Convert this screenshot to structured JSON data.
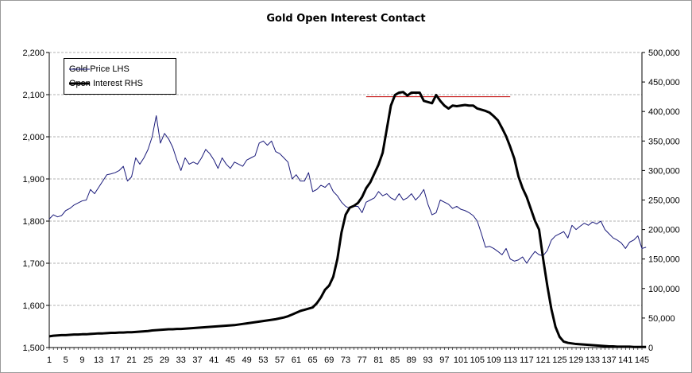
{
  "chart_data": {
    "type": "line",
    "title": "Gold Open Interest Contact",
    "x": {
      "start": 1,
      "end": 145,
      "tick_step": 4,
      "tick_labels": [
        "1",
        "5",
        "9",
        "13",
        "17",
        "21",
        "25",
        "29",
        "33",
        "37",
        "41",
        "45",
        "49",
        "53",
        "57",
        "61",
        "65",
        "69",
        "73",
        "77",
        "81",
        "85",
        "89",
        "93",
        "97",
        "101",
        "105",
        "109",
        "113",
        "117",
        "121",
        "125",
        "129",
        "133",
        "137",
        "141",
        "145"
      ]
    },
    "y_left": {
      "min": 1500,
      "max": 2200,
      "step": 100,
      "tick_labels": [
        "1,500",
        "1,600",
        "1,700",
        "1,800",
        "1,900",
        "2,000",
        "2,100",
        "2,200"
      ]
    },
    "y_right": {
      "min": 0,
      "max": 500000,
      "step": 50000,
      "tick_labels": [
        "0",
        "50,000",
        "100,000",
        "150,000",
        "200,000",
        "250,000",
        "300,000",
        "350,000",
        "400,000",
        "450,000",
        "500,000"
      ]
    },
    "grid": {
      "horizontal": true,
      "style": "dashed"
    },
    "legend_placement": "top-left",
    "series": [
      {
        "name": "Gold Price LHS",
        "axis": "left",
        "color": "#1a1a7a",
        "values": [
          1805,
          1815,
          1810,
          1813,
          1825,
          1830,
          1838,
          1843,
          1848,
          1850,
          1875,
          1865,
          1880,
          1895,
          1910,
          1912,
          1915,
          1920,
          1930,
          1895,
          1905,
          1950,
          1935,
          1950,
          1970,
          2000,
          2050,
          1985,
          2008,
          1995,
          1975,
          1945,
          1920,
          1950,
          1935,
          1940,
          1935,
          1950,
          1970,
          1960,
          1945,
          1925,
          1950,
          1935,
          1925,
          1940,
          1935,
          1930,
          1945,
          1950,
          1955,
          1985,
          1990,
          1980,
          1990,
          1965,
          1960,
          1950,
          1940,
          1900,
          1910,
          1895,
          1895,
          1915,
          1870,
          1875,
          1885,
          1880,
          1890,
          1870,
          1860,
          1845,
          1835,
          1830,
          1835,
          1835,
          1820,
          1845,
          1850,
          1855,
          1870,
          1860,
          1865,
          1855,
          1850,
          1865,
          1850,
          1855,
          1865,
          1850,
          1860,
          1875,
          1840,
          1815,
          1820,
          1850,
          1845,
          1840,
          1830,
          1835,
          1828,
          1825,
          1820,
          1813,
          1800,
          1770,
          1738,
          1740,
          1735,
          1728,
          1720,
          1735,
          1710,
          1705,
          1708,
          1715,
          1700,
          1715,
          1728,
          1720,
          1718,
          1730,
          1755,
          1765,
          1770,
          1775,
          1760,
          1790,
          1780,
          1788,
          1795,
          1790,
          1798,
          1793,
          1800,
          1780,
          1770,
          1760,
          1755,
          1748,
          1735,
          1750,
          1755,
          1765,
          1735,
          1738
        ]
      },
      {
        "name": "Open Interest RHS",
        "axis": "right",
        "color": "#000000",
        "values": [
          19000,
          20000,
          20500,
          21000,
          21000,
          21500,
          22000,
          22000,
          22500,
          22500,
          23000,
          23500,
          24000,
          24000,
          24500,
          25000,
          25000,
          25500,
          25500,
          26000,
          26000,
          26500,
          27000,
          27500,
          28000,
          29000,
          29500,
          30000,
          30500,
          31000,
          31000,
          31500,
          31500,
          32000,
          32500,
          33000,
          33500,
          34000,
          34500,
          35000,
          35500,
          36000,
          36500,
          37000,
          37500,
          38000,
          39000,
          40000,
          41000,
          42000,
          43000,
          44000,
          45000,
          46000,
          47000,
          48000,
          49500,
          51000,
          53000,
          56000,
          59000,
          62000,
          64000,
          66000,
          68000,
          75000,
          85000,
          98000,
          105000,
          120000,
          150000,
          195000,
          225000,
          237000,
          240000,
          245000,
          255000,
          270000,
          280000,
          295000,
          310000,
          330000,
          370000,
          410000,
          428000,
          432000,
          433000,
          427000,
          432000,
          432000,
          432000,
          418000,
          416000,
          414000,
          428000,
          418000,
          410000,
          405000,
          410000,
          409000,
          410000,
          411000,
          410000,
          410000,
          405000,
          403000,
          401000,
          398000,
          392000,
          385000,
          372000,
          358000,
          340000,
          320000,
          290000,
          270000,
          255000,
          235000,
          215000,
          200000,
          150000,
          105000,
          65000,
          35000,
          18000,
          10000,
          8000,
          7000,
          6000,
          5500,
          5000,
          4500,
          4000,
          3500,
          3000,
          2500,
          2000,
          2000,
          1500,
          1500,
          1500,
          1500,
          1000,
          1000,
          1000,
          1000
        ]
      }
    ],
    "reference_line": {
      "axis": "left",
      "value": 2095,
      "x_start": 78,
      "x_end": 113,
      "color": "#c00000"
    }
  }
}
